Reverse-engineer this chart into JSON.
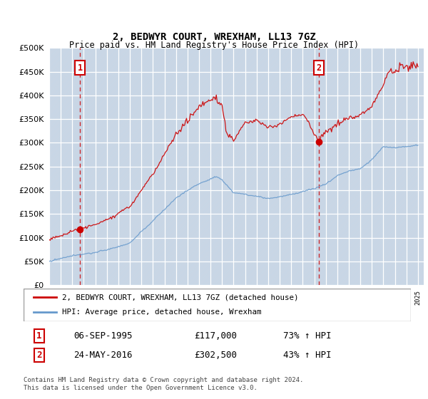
{
  "title": "2, BEDWYR COURT, WREXHAM, LL13 7GZ",
  "subtitle": "Price paid vs. HM Land Registry's House Price Index (HPI)",
  "ylim": [
    0,
    500000
  ],
  "yticks": [
    0,
    50000,
    100000,
    150000,
    200000,
    250000,
    300000,
    350000,
    400000,
    450000,
    500000
  ],
  "sale1_date": 1995.68,
  "sale1_price": 117000,
  "sale2_date": 2016.39,
  "sale2_price": 302500,
  "legend_line1": "2, BEDWYR COURT, WREXHAM, LL13 7GZ (detached house)",
  "legend_line2": "HPI: Average price, detached house, Wrexham",
  "table_row1": [
    "1",
    "06-SEP-1995",
    "£117,000",
    "73% ↑ HPI"
  ],
  "table_row2": [
    "2",
    "24-MAY-2016",
    "£302,500",
    "43% ↑ HPI"
  ],
  "footer": "Contains HM Land Registry data © Crown copyright and database right 2024.\nThis data is licensed under the Open Government Licence v3.0.",
  "red_line_color": "#cc0000",
  "blue_line_color": "#6699cc",
  "vline_color": "#cc0000",
  "box_color": "#cc0000",
  "plot_bg": "#dce6f0",
  "hatch_color": "#b8c8dc"
}
